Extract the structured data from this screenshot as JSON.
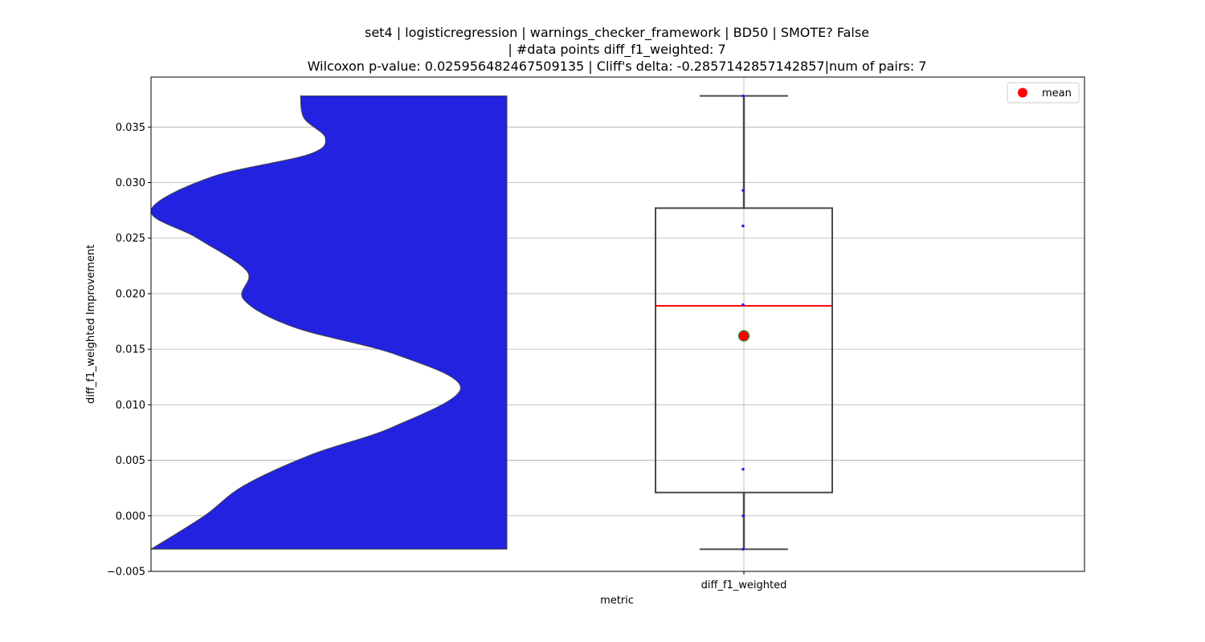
{
  "chart_data": {
    "type": "violin-box",
    "title_lines": [
      "set4 | logisticregression | warnings_checker_framework | BD50 | SMOTE? False",
      "| #data points diff_f1_weighted: 7",
      "Wilcoxon p-value: 0.025956482467509135 | Cliff's delta: -0.2857142857142857|num of pairs: 7"
    ],
    "xlabel": "metric",
    "ylabel": "diff_f1_weighted Improvement",
    "categories": [
      "diff_f1_weighted"
    ],
    "ylim": [
      -0.005,
      0.0395
    ],
    "yticks": [
      -0.005,
      0.0,
      0.005,
      0.01,
      0.015,
      0.02,
      0.025,
      0.03,
      0.035
    ],
    "ytick_labels": [
      "−0.005",
      "0.000",
      "0.005",
      "0.010",
      "0.015",
      "0.020",
      "0.025",
      "0.030",
      "0.035"
    ],
    "grid": true,
    "points": [
      -0.003,
      0.0,
      0.0042,
      0.019,
      0.0261,
      0.0293,
      0.0378
    ],
    "box": {
      "min": -0.003,
      "q1": 0.0021,
      "median": 0.0189,
      "q3": 0.0277,
      "max": 0.0378,
      "mean": 0.0162
    },
    "violin_density": [
      [
        -0.003,
        1.0
      ],
      [
        0.0,
        0.85
      ],
      [
        0.0027,
        0.74
      ],
      [
        0.0055,
        0.55
      ],
      [
        0.008,
        0.32
      ],
      [
        0.0115,
        0.13
      ],
      [
        0.0145,
        0.31
      ],
      [
        0.017,
        0.6
      ],
      [
        0.0195,
        0.74
      ],
      [
        0.022,
        0.73
      ],
      [
        0.025,
        0.87
      ],
      [
        0.0275,
        1.0
      ],
      [
        0.0305,
        0.83
      ],
      [
        0.0325,
        0.56
      ],
      [
        0.034,
        0.51
      ],
      [
        0.0358,
        0.57
      ],
      [
        0.0378,
        0.58
      ]
    ],
    "legend": {
      "label": "mean",
      "placement": "top-right"
    },
    "colors": {
      "violin": "#2222e0",
      "box_edge": "#4a4a4a",
      "median": "#ff0000",
      "mean": "#ff0000",
      "mean_edge": "#2e8b2e",
      "points": "#1f1fff",
      "grid": "#b0b0b0"
    }
  }
}
